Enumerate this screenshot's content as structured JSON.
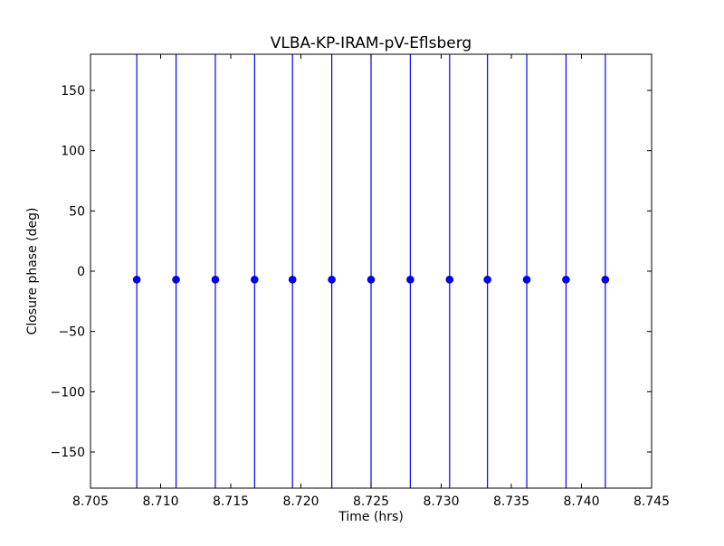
{
  "chart_data": {
    "type": "scatter",
    "title": "VLBA-KP-IRAM-pV-Eflsberg",
    "xlabel": "Time (hrs)",
    "ylabel": "Closure phase (deg)",
    "xlim": [
      8.705,
      8.745
    ],
    "ylim": [
      -180,
      180
    ],
    "x_ticks": [
      8.705,
      8.71,
      8.715,
      8.72,
      8.725,
      8.73,
      8.735,
      8.74,
      8.745
    ],
    "x_tick_labels": [
      "8.705",
      "8.710",
      "8.715",
      "8.720",
      "8.725",
      "8.730",
      "8.735",
      "8.740",
      "8.745"
    ],
    "y_ticks": [
      -150,
      -100,
      -50,
      0,
      50,
      100,
      150
    ],
    "y_tick_labels": [
      "−150",
      "−100",
      "−50",
      "0",
      "50",
      "100",
      "150"
    ],
    "grid": false,
    "series": [
      {
        "color": "#0000ff",
        "marker": "circle",
        "x": [
          8.7083,
          8.7111,
          8.7139,
          8.7167,
          8.7194,
          8.7222,
          8.725,
          8.7278,
          8.7306,
          8.7333,
          8.7361,
          8.7389,
          8.7417
        ],
        "y": [
          -7,
          -7,
          -7,
          -7,
          -7,
          -7,
          -7,
          -7,
          -7,
          -7,
          -7,
          -7,
          -7
        ],
        "yerr_low": [
          -180,
          -180,
          -180,
          -180,
          -180,
          -180,
          -180,
          -180,
          -180,
          -180,
          -180,
          -180,
          -180
        ],
        "yerr_high": [
          180,
          180,
          180,
          180,
          180,
          180,
          180,
          180,
          180,
          180,
          180,
          180,
          180
        ]
      }
    ]
  }
}
